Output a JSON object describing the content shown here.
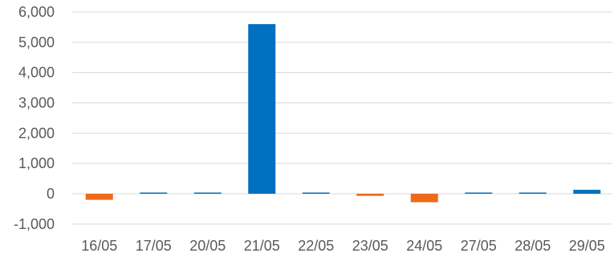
{
  "chart_data": {
    "type": "bar",
    "categories": [
      "16/05",
      "17/05",
      "20/05",
      "21/05",
      "22/05",
      "23/05",
      "24/05",
      "27/05",
      "28/05",
      "29/05"
    ],
    "values": [
      -200,
      0,
      0,
      5600,
      0,
      -70,
      -280,
      40,
      10,
      130
    ],
    "ylim": [
      -1000,
      6000
    ],
    "yticks": [
      -1000,
      0,
      1000,
      2000,
      3000,
      4000,
      5000,
      6000
    ],
    "ytick_labels": [
      "-1,000",
      "0",
      "1,000",
      "2,000",
      "3,000",
      "4,000",
      "5,000",
      "6,000"
    ],
    "grid": true,
    "colors": {
      "positive": "#0070c0",
      "negative": "#ed6a1b"
    }
  }
}
